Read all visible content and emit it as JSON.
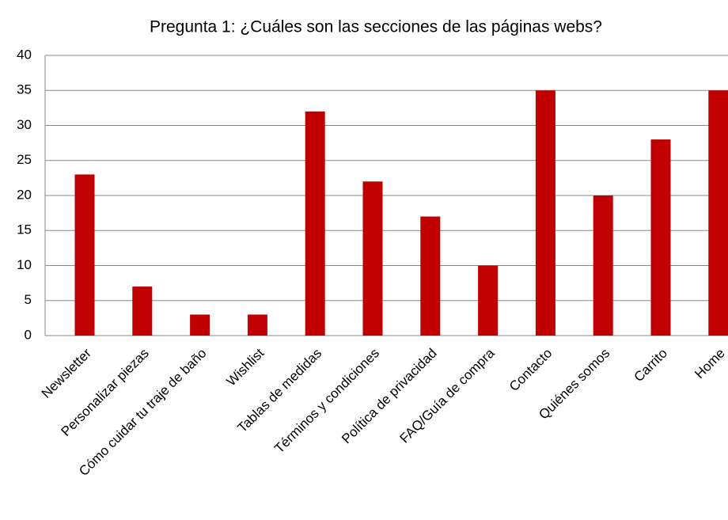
{
  "chart_data": {
    "type": "bar",
    "title": "Pregunta 1: ¿Cuáles son las secciones de las páginas webs?",
    "categories": [
      "Newsletter",
      "Personalizar piezas",
      "Cómo cuidar tu traje de baño",
      "Wishlist",
      "Tablas de medidas",
      "Términos y condiciones",
      "Política de privacidad",
      "FAQ/Guía de compra",
      "Contacto",
      "Quiénes somos",
      "Carrito",
      "Home"
    ],
    "values": [
      23,
      7,
      3,
      3,
      32,
      22,
      17,
      10,
      35,
      20,
      28,
      35
    ],
    "color": "#c00000",
    "ylim": [
      0,
      40
    ],
    "yticks": [
      0,
      5,
      10,
      15,
      20,
      25,
      30,
      35,
      40
    ],
    "grid": true
  }
}
